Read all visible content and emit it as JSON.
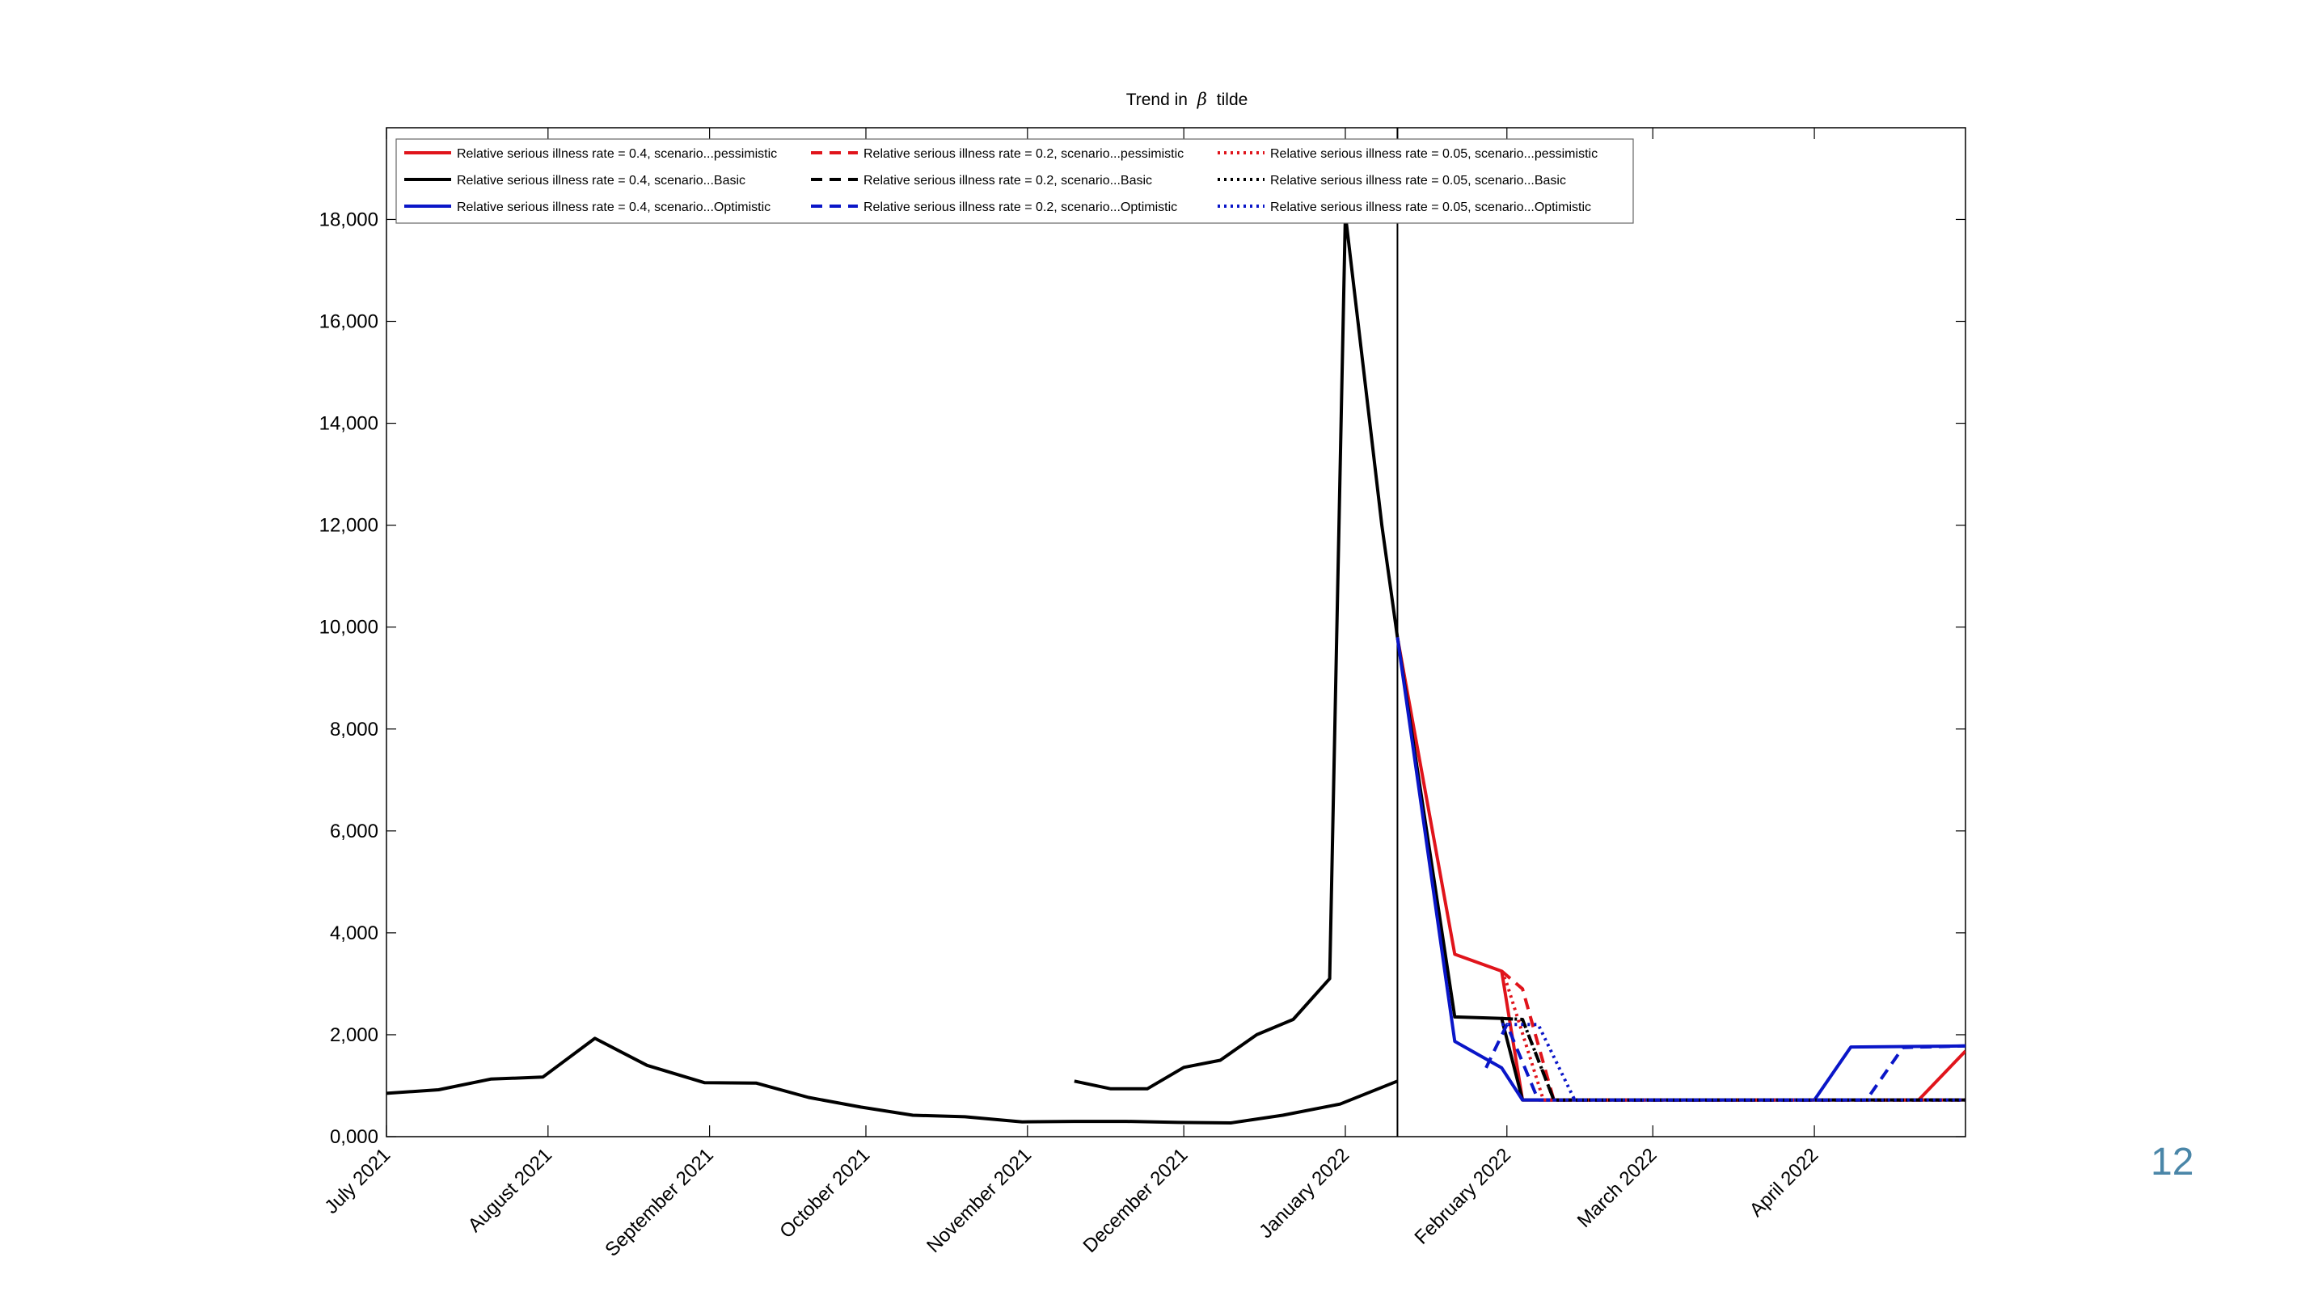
{
  "page": {
    "slide_number": "12"
  },
  "chart_data": {
    "type": "line",
    "title_prefix": "Trend in",
    "title_symbol": "β",
    "title_suffix": "tilde",
    "xlabel": "",
    "ylabel": "",
    "x_domain": [
      "2021-07-01",
      "2022-04-30"
    ],
    "ylim": [
      0,
      19800
    ],
    "yticks": [
      0,
      2000,
      4000,
      6000,
      8000,
      10000,
      12000,
      14000,
      16000,
      18000
    ],
    "ytick_labels": [
      "0,000",
      "2,000",
      "4,000",
      "6,000",
      "8,000",
      "10,000",
      "12,000",
      "14,000",
      "16,000",
      "18,000"
    ],
    "xticks": [
      "2021-07-01",
      "2021-08-01",
      "2021-09-01",
      "2021-10-01",
      "2021-11-01",
      "2021-12-01",
      "2022-01-01",
      "2022-02-01",
      "2022-03-01",
      "2022-04-01"
    ],
    "xtick_labels": [
      "July 2021",
      "August 2021",
      "September 2021",
      "October 2021",
      "November 2021",
      "December 2021",
      "January 2022",
      "February 2022",
      "March 2022",
      "April 2022"
    ],
    "vline_date": "2022-01-11",
    "grid": false,
    "legend_placement": "top-left",
    "colors": {
      "red": "#e0141b",
      "black": "#000000",
      "blue": "#0a16c8"
    },
    "series": [
      {
        "name": "",
        "color": "#000000",
        "style": "solid",
        "x": [
          "2021-07-01",
          "2021-07-11",
          "2021-07-21",
          "2021-07-31",
          "2021-08-10",
          "2021-08-20",
          "2021-08-31",
          "2021-09-10",
          "2021-09-20",
          "2021-09-30",
          "2021-10-10",
          "2021-10-20",
          "2021-10-31",
          "2021-11-10",
          "2021-11-20",
          "2021-11-30",
          "2021-12-10",
          "2021-12-20",
          "2021-12-31",
          "2022-01-11"
        ],
        "y": [
          850,
          920,
          1130,
          1170,
          1930,
          1400,
          1060,
          1050,
          770,
          580,
          420,
          390,
          290,
          300,
          300,
          280,
          270,
          420,
          640,
          1090
        ]
      },
      {
        "name": "",
        "color": "#000000",
        "style": "solid",
        "x": [
          "2021-11-10",
          "2021-11-17",
          "2021-11-24",
          "2021-12-01",
          "2021-12-08",
          "2021-12-15",
          "2021-12-22",
          "2021-12-29",
          "2022-01-01",
          "2022-01-08",
          "2022-01-11"
        ],
        "y": [
          1090,
          940,
          940,
          1360,
          1500,
          2000,
          2300,
          3100,
          18100,
          12000,
          9800
        ]
      },
      {
        "name": "Relative serious illness rate = 0.4, scenario...pessimistic",
        "color": "#e0141b",
        "style": "solid",
        "x": [
          "2022-01-11",
          "2022-01-22",
          "2022-01-31",
          "2022-02-04",
          "2022-04-21",
          "2022-04-30"
        ],
        "y": [
          9800,
          3580,
          3250,
          720,
          720,
          1680
        ]
      },
      {
        "name": "Relative serious illness rate = 0.4, scenario...Basic",
        "color": "#000000",
        "style": "solid",
        "x": [
          "2022-01-11",
          "2022-01-22",
          "2022-01-31",
          "2022-02-04",
          "2022-04-30"
        ],
        "y": [
          9800,
          2350,
          2320,
          720,
          720
        ]
      },
      {
        "name": "Relative serious illness rate = 0.4, scenario...Optimistic",
        "color": "#0a16c8",
        "style": "solid",
        "x": [
          "2022-01-11",
          "2022-01-22",
          "2022-01-31",
          "2022-02-04",
          "2022-04-01",
          "2022-04-08",
          "2022-04-30"
        ],
        "y": [
          9800,
          1870,
          1350,
          720,
          720,
          1760,
          1780
        ]
      },
      {
        "name": "Relative serious illness rate = 0.2, scenario...pessimistic",
        "color": "#e0141b",
        "style": "dashed",
        "x": [
          "2022-01-31",
          "2022-02-04",
          "2022-02-10",
          "2022-04-30"
        ],
        "y": [
          3250,
          2900,
          720,
          720
        ]
      },
      {
        "name": "Relative serious illness rate = 0.2, scenario...Basic",
        "color": "#000000",
        "style": "dashed",
        "x": [
          "2022-01-31",
          "2022-02-04",
          "2022-02-10",
          "2022-04-30"
        ],
        "y": [
          2320,
          2300,
          720,
          720
        ]
      },
      {
        "name": "Relative serious illness rate = 0.2, scenario...Optimistic",
        "color": "#0a16c8",
        "style": "dashed",
        "x": [
          "2022-01-28",
          "2022-02-01",
          "2022-02-07",
          "2022-04-11",
          "2022-04-18",
          "2022-04-30"
        ],
        "y": [
          1350,
          2200,
          720,
          720,
          1750,
          1780
        ]
      },
      {
        "name": "Relative serious illness rate = 0.05, scenario...pessimistic",
        "color": "#e0141b",
        "style": "dotted",
        "x": [
          "2022-01-31",
          "2022-02-01",
          "2022-02-08",
          "2022-04-30"
        ],
        "y": [
          3250,
          3000,
          720,
          720
        ]
      },
      {
        "name": "Relative serious illness rate = 0.05, scenario...Basic",
        "color": "#000000",
        "style": "dotted",
        "x": [
          "2022-01-31",
          "2022-02-04",
          "2022-02-10",
          "2022-04-30"
        ],
        "y": [
          2320,
          2300,
          720,
          720
        ]
      },
      {
        "name": "Relative serious illness rate = 0.05, scenario...Optimistic",
        "color": "#0a16c8",
        "style": "dotted",
        "x": [
          "2022-01-31",
          "2022-02-07",
          "2022-02-14",
          "2022-04-30"
        ],
        "y": [
          2200,
          2200,
          720,
          720
        ]
      }
    ]
  }
}
